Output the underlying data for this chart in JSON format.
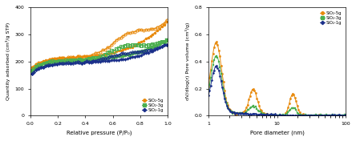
{
  "left": {
    "xlabel": "Relative pressure (P/P₀)",
    "ylabel": "Quantity adsorbed (cm³/g STP)",
    "ylim": [
      0,
      400
    ],
    "xlim": [
      0.0,
      1.0
    ],
    "yticks": [
      0,
      100,
      200,
      300,
      400
    ],
    "colors": {
      "5g": "#E8890A",
      "3g": "#4CAF50",
      "1g": "#1A2F8A"
    },
    "legend": [
      "SiO₂-5g",
      "SiO₂-3g",
      "SiO₂-1g"
    ]
  },
  "right": {
    "xlabel": "Pore diameter (nm)",
    "ylabel": "dV/dlog(r) Pore volume (cm³/g)",
    "ylim": [
      0.0,
      0.8
    ],
    "xlim": [
      1,
      100
    ],
    "yticks": [
      0.0,
      0.2,
      0.4,
      0.6,
      0.8
    ],
    "colors": {
      "5g": "#E8890A",
      "3g": "#4CAF50",
      "1g": "#1A2F8A"
    },
    "legend": [
      "SiO₂-5g",
      "SiO₂-3g",
      "SiO₂-1g"
    ]
  }
}
